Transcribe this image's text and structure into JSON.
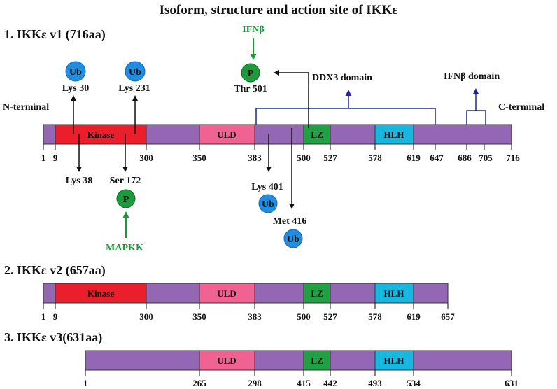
{
  "title": "Isoform, structure and action site of IKKε",
  "colors": {
    "base": "#9467b4",
    "kinase": "#ea1f2b",
    "uld": "#f06292",
    "lz": "#21a143",
    "hlh": "#18b7e0",
    "ub": "#1f8ee0",
    "p": "#1d9a3c",
    "green_text": "#1a9a3a",
    "blue_line": "#1f2a8a"
  },
  "isoforms": [
    {
      "label": "1. IKKε v1 (716aa)",
      "domains": {
        "kinase": "Kinase",
        "uld": "ULD",
        "lz": "LZ",
        "hlh": "HLH"
      },
      "ticks": [
        "1",
        "9",
        "300",
        "350",
        "383",
        "500",
        "527",
        "578",
        "619",
        "647",
        "686",
        "705",
        "716"
      ]
    },
    {
      "label": "2. IKKε v2 (657aa)",
      "domains": {
        "kinase": "Kinase",
        "uld": "ULD",
        "lz": "LZ",
        "hlh": "HLH"
      },
      "ticks": [
        "1",
        "9",
        "300",
        "350",
        "383",
        "500",
        "527",
        "578",
        "619",
        "657"
      ]
    },
    {
      "label": "3. IKKε v3(631aa)",
      "domains": {
        "uld": "ULD",
        "lz": "LZ",
        "hlh": "HLH"
      },
      "ticks": [
        "1",
        "265",
        "298",
        "415",
        "442",
        "493",
        "534",
        "631"
      ]
    }
  ],
  "annotations": {
    "n_terminal": "N-terminal",
    "c_terminal": "C-terminal",
    "ddx3_domain": "DDX3 domain",
    "ifnb_domain": "IFNβ domain",
    "ifnb": "IFNβ",
    "mapkk": "MAPKK",
    "lys30": "Lys 30",
    "lys231": "Lys 231",
    "thr501": "Thr 501",
    "lys38": "Lys 38",
    "ser172": "Ser 172",
    "lys401": "Lys 401",
    "met416": "Met 416",
    "ub": "Ub",
    "p": "P"
  }
}
